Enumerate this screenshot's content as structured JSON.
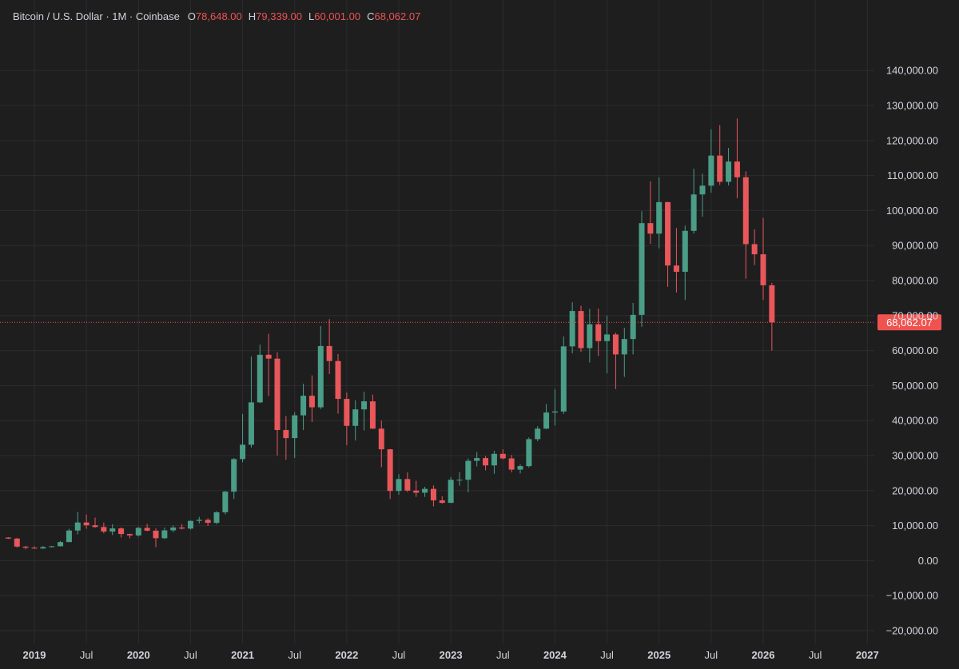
{
  "legend": {
    "symbol": "Bitcoin / U.S. Dollar · 1M · Coinbase",
    "o_key": "O",
    "o_val": "78,648.00",
    "h_key": "H",
    "h_val": "79,339.00",
    "l_key": "L",
    "l_val": "60,001.00",
    "c_key": "C",
    "c_val": "68,062.07"
  },
  "colors": {
    "background": "#1e1e1f",
    "grid": "#2c2c2e",
    "up": "#4a9d86",
    "down": "#e9575a",
    "text": "#d1d4dc",
    "last_price": "#ef5350"
  },
  "chart_data": {
    "type": "candlestick",
    "interval": "1M",
    "ylim": [
      -22000,
      150000
    ],
    "y_ticks": [
      -20000,
      -10000,
      0,
      10000,
      20000,
      30000,
      40000,
      50000,
      60000,
      70000,
      80000,
      90000,
      100000,
      110000,
      120000,
      130000,
      140000
    ],
    "y_tick_labels": [
      "−20,000.00",
      "−10,000.00",
      "0.00",
      "10,000.00",
      "20,000.00",
      "30,000.00",
      "40,000.00",
      "50,000.00",
      "60,000.00",
      "70,000.00",
      "80,000.00",
      "90,000.00",
      "100,000.00",
      "110,000.00",
      "120,000.00",
      "130,000.00",
      "140,000.00"
    ],
    "x_ticks": [
      {
        "date": "2019-01",
        "label": "2019",
        "year": true
      },
      {
        "date": "2019-07",
        "label": "Jul",
        "year": false
      },
      {
        "date": "2020-01",
        "label": "2020",
        "year": true
      },
      {
        "date": "2020-07",
        "label": "Jul",
        "year": false
      },
      {
        "date": "2021-01",
        "label": "2021",
        "year": true
      },
      {
        "date": "2021-07",
        "label": "Jul",
        "year": false
      },
      {
        "date": "2022-01",
        "label": "2022",
        "year": true
      },
      {
        "date": "2022-07",
        "label": "Jul",
        "year": false
      },
      {
        "date": "2023-01",
        "label": "2023",
        "year": true
      },
      {
        "date": "2023-07",
        "label": "Jul",
        "year": false
      },
      {
        "date": "2024-01",
        "label": "2024",
        "year": true
      },
      {
        "date": "2024-07",
        "label": "Jul",
        "year": false
      },
      {
        "date": "2025-01",
        "label": "2025",
        "year": true
      },
      {
        "date": "2025-07",
        "label": "Jul",
        "year": false
      },
      {
        "date": "2026-01",
        "label": "2026",
        "year": true
      },
      {
        "date": "2026-07",
        "label": "Jul",
        "year": false
      },
      {
        "date": "2027-01",
        "label": "2027",
        "year": true
      }
    ],
    "last_price": 68062.07,
    "last_price_label": "68,062.07",
    "candles": [
      {
        "date": "2018-10",
        "o": 6600,
        "h": 6700,
        "l": 6200,
        "c": 6300
      },
      {
        "date": "2018-11",
        "o": 6300,
        "h": 6500,
        "l": 3700,
        "c": 4000
      },
      {
        "date": "2018-12",
        "o": 4000,
        "h": 4200,
        "l": 3200,
        "c": 3700
      },
      {
        "date": "2019-01",
        "o": 3700,
        "h": 4100,
        "l": 3400,
        "c": 3450
      },
      {
        "date": "2019-02",
        "o": 3450,
        "h": 4200,
        "l": 3400,
        "c": 3850
      },
      {
        "date": "2019-03",
        "o": 3850,
        "h": 4200,
        "l": 3750,
        "c": 4100
      },
      {
        "date": "2019-04",
        "o": 4100,
        "h": 5600,
        "l": 4050,
        "c": 5300
      },
      {
        "date": "2019-05",
        "o": 5300,
        "h": 9100,
        "l": 5300,
        "c": 8600
      },
      {
        "date": "2019-06",
        "o": 8600,
        "h": 13900,
        "l": 7500,
        "c": 10900
      },
      {
        "date": "2019-07",
        "o": 10900,
        "h": 13200,
        "l": 9100,
        "c": 10100
      },
      {
        "date": "2019-08",
        "o": 10100,
        "h": 12300,
        "l": 9400,
        "c": 9600
      },
      {
        "date": "2019-09",
        "o": 9600,
        "h": 10900,
        "l": 7800,
        "c": 8300
      },
      {
        "date": "2019-10",
        "o": 8300,
        "h": 10400,
        "l": 7300,
        "c": 9200
      },
      {
        "date": "2019-11",
        "o": 9200,
        "h": 9500,
        "l": 6600,
        "c": 7600
      },
      {
        "date": "2019-12",
        "o": 7600,
        "h": 7700,
        "l": 6400,
        "c": 7200
      },
      {
        "date": "2020-01",
        "o": 7200,
        "h": 9600,
        "l": 6900,
        "c": 9350
      },
      {
        "date": "2020-02",
        "o": 9350,
        "h": 10500,
        "l": 8400,
        "c": 8550
      },
      {
        "date": "2020-03",
        "o": 8550,
        "h": 9200,
        "l": 3850,
        "c": 6400
      },
      {
        "date": "2020-04",
        "o": 6400,
        "h": 9450,
        "l": 6150,
        "c": 8650
      },
      {
        "date": "2020-05",
        "o": 8650,
        "h": 10050,
        "l": 8100,
        "c": 9450
      },
      {
        "date": "2020-06",
        "o": 9450,
        "h": 10400,
        "l": 8900,
        "c": 9150
      },
      {
        "date": "2020-07",
        "o": 9150,
        "h": 11450,
        "l": 8900,
        "c": 11350
      },
      {
        "date": "2020-08",
        "o": 11350,
        "h": 12500,
        "l": 10600,
        "c": 11650
      },
      {
        "date": "2020-09",
        "o": 11650,
        "h": 12100,
        "l": 9900,
        "c": 10800
      },
      {
        "date": "2020-10",
        "o": 10800,
        "h": 14100,
        "l": 10400,
        "c": 13800
      },
      {
        "date": "2020-11",
        "o": 13800,
        "h": 19900,
        "l": 13200,
        "c": 19700
      },
      {
        "date": "2020-12",
        "o": 19700,
        "h": 29300,
        "l": 17600,
        "c": 29000
      },
      {
        "date": "2021-01",
        "o": 29000,
        "h": 41900,
        "l": 28100,
        "c": 33100
      },
      {
        "date": "2021-02",
        "o": 33100,
        "h": 58300,
        "l": 32300,
        "c": 45200
      },
      {
        "date": "2021-03",
        "o": 45200,
        "h": 61700,
        "l": 45000,
        "c": 58800
      },
      {
        "date": "2021-04",
        "o": 58800,
        "h": 64800,
        "l": 47000,
        "c": 57700
      },
      {
        "date": "2021-05",
        "o": 57700,
        "h": 59500,
        "l": 30000,
        "c": 37300
      },
      {
        "date": "2021-06",
        "o": 37300,
        "h": 41300,
        "l": 28800,
        "c": 35000
      },
      {
        "date": "2021-07",
        "o": 35000,
        "h": 42400,
        "l": 29300,
        "c": 41500
      },
      {
        "date": "2021-08",
        "o": 41500,
        "h": 50500,
        "l": 37300,
        "c": 47100
      },
      {
        "date": "2021-09",
        "o": 47100,
        "h": 52900,
        "l": 39600,
        "c": 43800
      },
      {
        "date": "2021-10",
        "o": 43800,
        "h": 67000,
        "l": 43300,
        "c": 61300
      },
      {
        "date": "2021-11",
        "o": 61300,
        "h": 69000,
        "l": 53300,
        "c": 57000
      },
      {
        "date": "2021-12",
        "o": 57000,
        "h": 59000,
        "l": 42000,
        "c": 46200
      },
      {
        "date": "2022-01",
        "o": 46200,
        "h": 48000,
        "l": 33000,
        "c": 38500
      },
      {
        "date": "2022-02",
        "o": 38500,
        "h": 45800,
        "l": 34300,
        "c": 43200
      },
      {
        "date": "2022-03",
        "o": 43200,
        "h": 48200,
        "l": 37200,
        "c": 45500
      },
      {
        "date": "2022-04",
        "o": 45500,
        "h": 47400,
        "l": 37600,
        "c": 37700
      },
      {
        "date": "2022-05",
        "o": 37700,
        "h": 40000,
        "l": 26700,
        "c": 31800
      },
      {
        "date": "2022-06",
        "o": 31800,
        "h": 31900,
        "l": 17600,
        "c": 19900
      },
      {
        "date": "2022-07",
        "o": 19900,
        "h": 24700,
        "l": 18800,
        "c": 23300
      },
      {
        "date": "2022-08",
        "o": 23300,
        "h": 25200,
        "l": 19600,
        "c": 20000
      },
      {
        "date": "2022-09",
        "o": 20000,
        "h": 22800,
        "l": 18200,
        "c": 19400
      },
      {
        "date": "2022-10",
        "o": 19400,
        "h": 21100,
        "l": 18200,
        "c": 20500
      },
      {
        "date": "2022-11",
        "o": 20500,
        "h": 21500,
        "l": 15500,
        "c": 17200
      },
      {
        "date": "2022-12",
        "o": 17200,
        "h": 18400,
        "l": 16300,
        "c": 16500
      },
      {
        "date": "2023-01",
        "o": 16500,
        "h": 23900,
        "l": 16500,
        "c": 23100
      },
      {
        "date": "2023-02",
        "o": 23100,
        "h": 25300,
        "l": 21400,
        "c": 23100
      },
      {
        "date": "2023-03",
        "o": 23100,
        "h": 29200,
        "l": 19500,
        "c": 28500
      },
      {
        "date": "2023-04",
        "o": 28500,
        "h": 31000,
        "l": 26900,
        "c": 29300
      },
      {
        "date": "2023-05",
        "o": 29300,
        "h": 29900,
        "l": 25800,
        "c": 27200
      },
      {
        "date": "2023-06",
        "o": 27200,
        "h": 31400,
        "l": 24800,
        "c": 30500
      },
      {
        "date": "2023-07",
        "o": 30500,
        "h": 31800,
        "l": 28900,
        "c": 29200
      },
      {
        "date": "2023-08",
        "o": 29200,
        "h": 30200,
        "l": 25200,
        "c": 26000
      },
      {
        "date": "2023-09",
        "o": 26000,
        "h": 27500,
        "l": 24900,
        "c": 27000
      },
      {
        "date": "2023-10",
        "o": 27000,
        "h": 35200,
        "l": 26600,
        "c": 34700
      },
      {
        "date": "2023-11",
        "o": 34700,
        "h": 38400,
        "l": 34100,
        "c": 37700
      },
      {
        "date": "2023-12",
        "o": 37700,
        "h": 44700,
        "l": 37600,
        "c": 42300
      },
      {
        "date": "2024-01",
        "o": 42300,
        "h": 49000,
        "l": 38600,
        "c": 42600
      },
      {
        "date": "2024-02",
        "o": 42600,
        "h": 64000,
        "l": 41900,
        "c": 61200
      },
      {
        "date": "2024-03",
        "o": 61200,
        "h": 73800,
        "l": 59200,
        "c": 71300
      },
      {
        "date": "2024-04",
        "o": 71300,
        "h": 72800,
        "l": 59600,
        "c": 60700
      },
      {
        "date": "2024-05",
        "o": 60700,
        "h": 71900,
        "l": 56600,
        "c": 67500
      },
      {
        "date": "2024-06",
        "o": 67500,
        "h": 72000,
        "l": 58500,
        "c": 62700
      },
      {
        "date": "2024-07",
        "o": 62700,
        "h": 70000,
        "l": 53500,
        "c": 64600
      },
      {
        "date": "2024-08",
        "o": 64600,
        "h": 65100,
        "l": 49000,
        "c": 58900
      },
      {
        "date": "2024-09",
        "o": 58900,
        "h": 66500,
        "l": 52500,
        "c": 63300
      },
      {
        "date": "2024-10",
        "o": 63300,
        "h": 73600,
        "l": 58900,
        "c": 70200
      },
      {
        "date": "2024-11",
        "o": 70200,
        "h": 99800,
        "l": 66800,
        "c": 96400
      },
      {
        "date": "2024-12",
        "o": 96400,
        "h": 108300,
        "l": 90500,
        "c": 93400
      },
      {
        "date": "2025-01",
        "o": 93400,
        "h": 109500,
        "l": 89200,
        "c": 102400
      },
      {
        "date": "2025-02",
        "o": 102400,
        "h": 102500,
        "l": 78200,
        "c": 84300
      },
      {
        "date": "2025-03",
        "o": 84300,
        "h": 95000,
        "l": 76600,
        "c": 82500
      },
      {
        "date": "2025-04",
        "o": 82500,
        "h": 95700,
        "l": 74500,
        "c": 94200
      },
      {
        "date": "2025-05",
        "o": 94200,
        "h": 111900,
        "l": 93400,
        "c": 104600
      },
      {
        "date": "2025-06",
        "o": 104600,
        "h": 110500,
        "l": 98200,
        "c": 107100
      },
      {
        "date": "2025-07",
        "o": 107100,
        "h": 123200,
        "l": 105100,
        "c": 115700
      },
      {
        "date": "2025-08",
        "o": 115700,
        "h": 124400,
        "l": 107300,
        "c": 108200
      },
      {
        "date": "2025-09",
        "o": 108200,
        "h": 117900,
        "l": 107200,
        "c": 114000
      },
      {
        "date": "2025-10",
        "o": 114000,
        "h": 126300,
        "l": 103500,
        "c": 109500
      },
      {
        "date": "2025-11",
        "o": 109500,
        "h": 111200,
        "l": 80500,
        "c": 90400
      },
      {
        "date": "2025-12",
        "o": 90400,
        "h": 94600,
        "l": 84400,
        "c": 87500
      },
      {
        "date": "2026-01",
        "o": 87500,
        "h": 97900,
        "l": 74500,
        "c": 78648
      },
      {
        "date": "2026-02",
        "o": 78648,
        "h": 79339,
        "l": 60001,
        "c": 68062.07
      }
    ]
  }
}
